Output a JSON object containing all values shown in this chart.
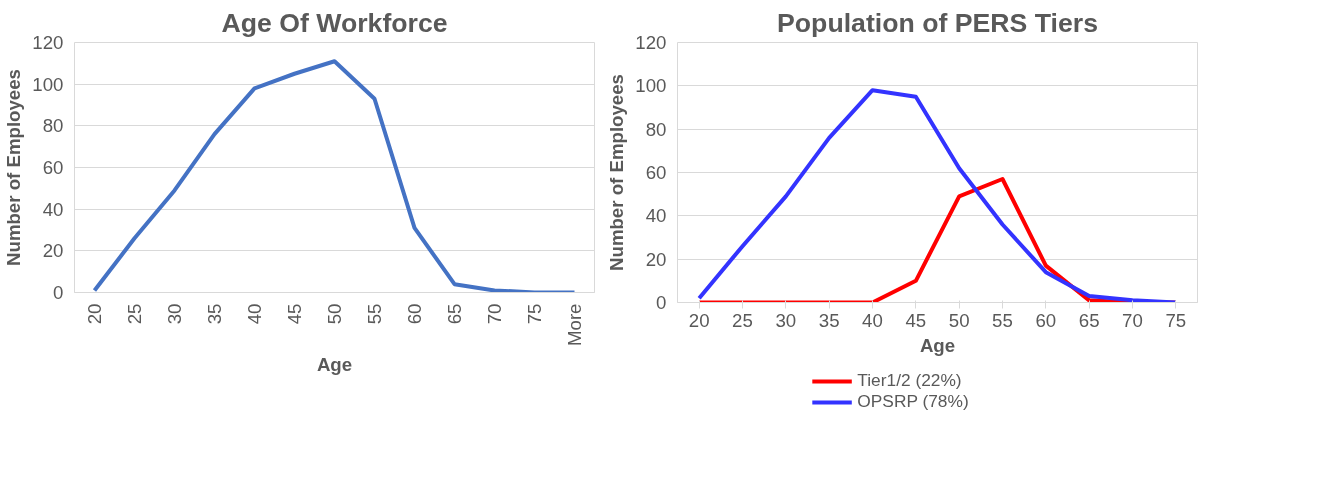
{
  "chart_data": [
    {
      "type": "line",
      "title": "Age Of Workforce",
      "xlabel": "Age",
      "ylabel": "Number of Employees",
      "categories": [
        "20",
        "25",
        "30",
        "35",
        "40",
        "45",
        "50",
        "55",
        "60",
        "65",
        "70",
        "75",
        "More"
      ],
      "series": [
        {
          "color": "#4472c4",
          "values": [
            1,
            26,
            49,
            76,
            98,
            105,
            111,
            93,
            31,
            4,
            1,
            0,
            0
          ]
        }
      ],
      "ylim": [
        0,
        120
      ],
      "yticks": [
        0,
        20,
        40,
        60,
        80,
        100,
        120
      ],
      "grid": "y",
      "marker": "none",
      "line_style": "solid"
    },
    {
      "type": "line",
      "title": "Population of PERS Tiers",
      "xlabel": "Age",
      "ylabel": "Number of Employees",
      "categories": [
        "20",
        "25",
        "30",
        "35",
        "40",
        "45",
        "50",
        "55",
        "60",
        "65",
        "70",
        "75"
      ],
      "series": [
        {
          "name": "Tier1/2 (22%)",
          "color": "#ff0000",
          "values": [
            0,
            0,
            0,
            0,
            0,
            10,
            49,
            57,
            17,
            1,
            0,
            0
          ]
        },
        {
          "name": "OPSRP (78%)",
          "color": "#3333ff",
          "values": [
            2,
            26,
            49,
            76,
            98,
            95,
            62,
            36,
            14,
            3,
            1,
            0
          ]
        }
      ],
      "ylim": [
        0,
        120
      ],
      "yticks": [
        0,
        20,
        40,
        60,
        80,
        100,
        120
      ],
      "grid": "y",
      "legend": "bottom",
      "marker": "none",
      "line_style": "solid"
    }
  ]
}
